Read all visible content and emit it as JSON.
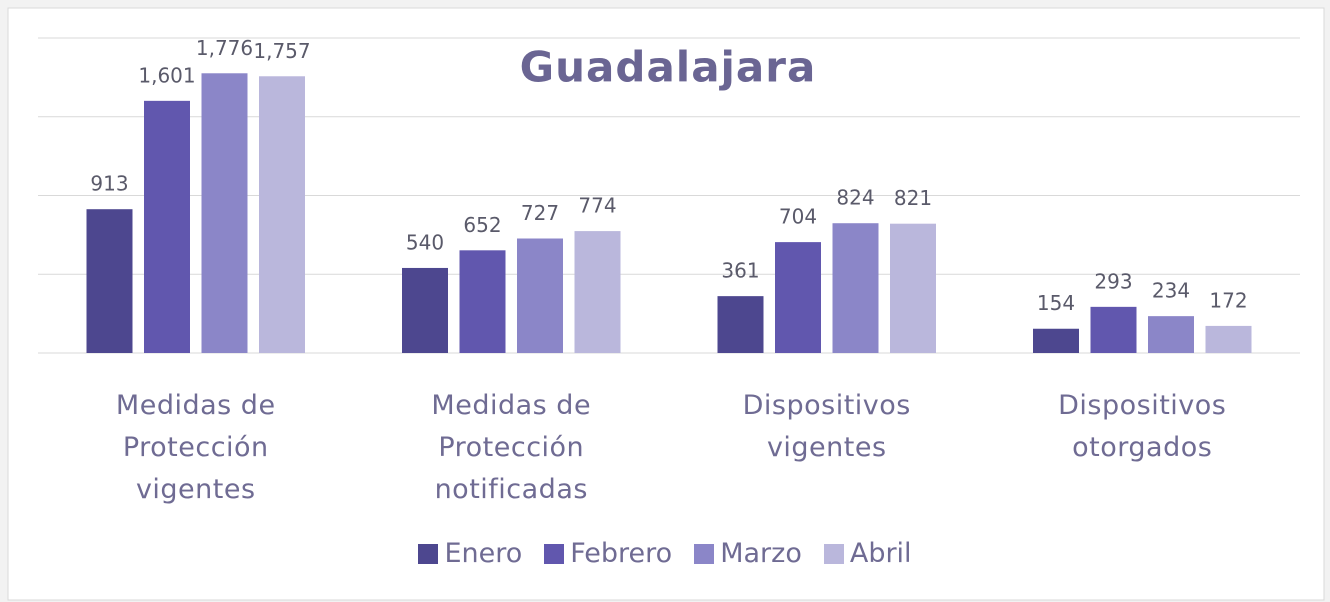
{
  "chart_data": {
    "type": "bar",
    "title": "Guadalajara",
    "categories": [
      "Medidas de Protección vigentes",
      "Medidas de Protección notificadas",
      "Dispositivos vigentes",
      "Dispositivos otorgados"
    ],
    "series": [
      {
        "name": "Enero",
        "color": "#4d478f",
        "values": [
          913,
          540,
          361,
          154
        ]
      },
      {
        "name": "Febrero",
        "color": "#6157ae",
        "values": [
          1601,
          652,
          704,
          293
        ],
        "value_labels": [
          "1,601",
          "652",
          "704",
          "293"
        ]
      },
      {
        "name": "Marzo",
        "color": "#8b86c8",
        "values": [
          1776,
          727,
          824,
          234
        ],
        "value_labels": [
          "1,776",
          "727",
          "824",
          "234"
        ]
      },
      {
        "name": "Abril",
        "color": "#bab7dc",
        "values": [
          1757,
          774,
          821,
          172
        ],
        "value_labels": [
          "1,757",
          "774",
          "821",
          "172"
        ]
      }
    ],
    "ylim": [
      0,
      2000
    ],
    "yticks": [
      0,
      500,
      1000,
      1500,
      2000
    ],
    "grid": true,
    "legend": "bottom"
  }
}
